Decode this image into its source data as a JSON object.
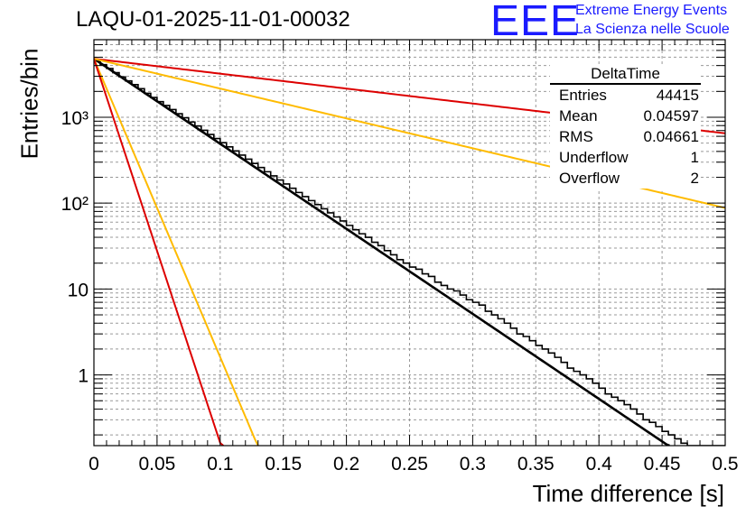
{
  "title": "LAQU-01-2025-11-01-00032",
  "logo": {
    "text": "EEE",
    "line1": "Extreme Energy Events",
    "line2": "La Scienza nelle Scuole",
    "color": "#1a1aff"
  },
  "stats_box": {
    "title": "DeltaTime",
    "rows": [
      {
        "label": "Entries",
        "value": "44415"
      },
      {
        "label": "Mean",
        "value": "0.04597"
      },
      {
        "label": "RMS",
        "value": "0.04661"
      },
      {
        "label": "Underflow",
        "value": "1"
      },
      {
        "label": "Overflow",
        "value": "2"
      }
    ]
  },
  "chart_data": {
    "type": "histogram",
    "title": "LAQU-01-2025-11-01-00032",
    "xlabel": "Time difference [s]",
    "ylabel": "Entries/bin",
    "xlim": [
      0,
      0.5
    ],
    "ylim": [
      0.15,
      8000
    ],
    "yscale": "log",
    "grid": true,
    "x_ticks": [
      "0",
      "0.05",
      "0.1",
      "0.15",
      "0.2",
      "0.25",
      "0.3",
      "0.35",
      "0.4",
      "0.45",
      "0.5"
    ],
    "x_tick_values": [
      0,
      0.05,
      0.1,
      0.15,
      0.2,
      0.25,
      0.3,
      0.35,
      0.4,
      0.45,
      0.5
    ],
    "y_ticks": [
      "1",
      "10",
      "10²",
      "10³"
    ],
    "y_tick_values": [
      1,
      10,
      100,
      1000
    ],
    "histogram": {
      "name": "DeltaTime",
      "bin_width": 0.005,
      "color": "#000000",
      "values": [
        4600,
        4100,
        3700,
        3300,
        2950,
        2650,
        2400,
        2150,
        1900,
        1700,
        1520,
        1370,
        1230,
        1100,
        985,
        880,
        790,
        705,
        630,
        565,
        505,
        452,
        405,
        362,
        325,
        290,
        260,
        232,
        208,
        186,
        167,
        149,
        133,
        119,
        107,
        96,
        86,
        77,
        69,
        62,
        55,
        49,
        44,
        40,
        35,
        32,
        28,
        25,
        22,
        20,
        18,
        17,
        15,
        14,
        12,
        11,
        10,
        9.5,
        8.5,
        7.5,
        7,
        6.5,
        5.5,
        5,
        4.5,
        4,
        3.5,
        3,
        2.8,
        2.5,
        2.2,
        2,
        1.8,
        1.6,
        1.4,
        1.2,
        1.1,
        1,
        0.9,
        0.8,
        0.7,
        0.6,
        0.55,
        0.5,
        0.45,
        0.4,
        0.35,
        0.3,
        0.28,
        0.25,
        0.22,
        0.2,
        0.18,
        0.16,
        0.15,
        0.15,
        0.15,
        0.15,
        0.15,
        0.15
      ]
    },
    "fits": [
      {
        "name": "fit",
        "color": "#000000",
        "amplitude": 4800,
        "slope": -22.8,
        "x_end": 0.47
      },
      {
        "name": "red-slow",
        "color": "#dd0000",
        "amplitude": 4800,
        "slope": -4.0,
        "x_end": 0.5
      },
      {
        "name": "orange-slow",
        "color": "#ffbb00",
        "amplitude": 4800,
        "slope": -8.0,
        "x_end": 0.5
      },
      {
        "name": "orange-fast",
        "color": "#ffbb00",
        "amplitude": 4800,
        "slope": -80.0,
        "x_end": 0.5
      },
      {
        "name": "red-fast",
        "color": "#dd0000",
        "amplitude": 4800,
        "slope": -103.0,
        "x_end": 0.5
      }
    ]
  }
}
